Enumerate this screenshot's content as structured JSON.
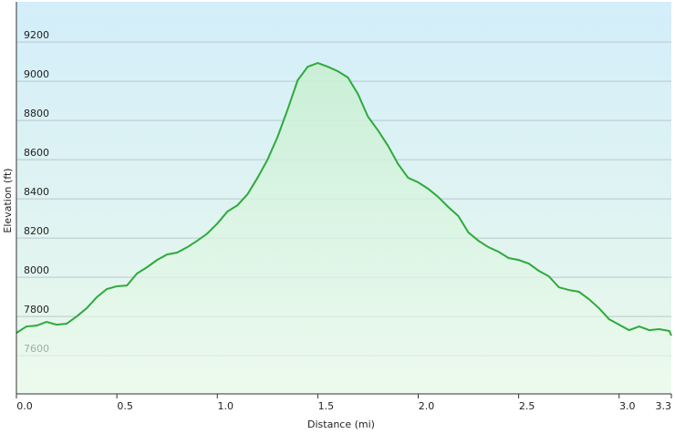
{
  "chart_data": {
    "type": "area",
    "x_label": "Distance  (mi)",
    "y_label": "Elevation (ft)",
    "x": [
      0,
      0.05,
      0.1,
      0.15,
      0.2,
      0.25,
      0.3,
      0.35,
      0.4,
      0.45,
      0.5,
      0.55,
      0.6,
      0.65,
      0.7,
      0.75,
      0.8,
      0.85,
      0.9,
      0.95,
      1.0,
      1.05,
      1.1,
      1.15,
      1.2,
      1.25,
      1.3,
      1.35,
      1.4,
      1.45,
      1.5,
      1.55,
      1.6,
      1.65,
      1.7,
      1.75,
      1.8,
      1.85,
      1.9,
      1.95,
      2.0,
      2.05,
      2.1,
      2.15,
      2.2,
      2.25,
      2.3,
      2.35,
      2.4,
      2.45,
      2.5,
      2.55,
      2.6,
      2.65,
      2.7,
      2.75,
      2.8,
      2.85,
      2.9,
      2.95,
      3.0,
      3.05,
      3.1,
      3.15,
      3.2,
      3.25,
      3.26
    ],
    "series": [
      {
        "name": "Elevation",
        "color": "#2eaa3c",
        "values": [
          7716,
          7749,
          7753,
          7772,
          7758,
          7763,
          7800,
          7842,
          7898,
          7940,
          7954,
          7958,
          8019,
          8051,
          8088,
          8116,
          8126,
          8153,
          8186,
          8223,
          8274,
          8335,
          8367,
          8423,
          8507,
          8600,
          8716,
          8856,
          9005,
          9074,
          9093,
          9074,
          9051,
          9019,
          8935,
          8819,
          8749,
          8670,
          8577,
          8507,
          8484,
          8451,
          8409,
          8358,
          8312,
          8228,
          8186,
          8153,
          8130,
          8098,
          8088,
          8070,
          8033,
          8005,
          7949,
          7935,
          7926,
          7888,
          7842,
          7786,
          7758,
          7730,
          7749,
          7730,
          7735,
          7726,
          7702
        ]
      }
    ],
    "xlim": [
      0,
      3.26
    ],
    "xticks": [
      {
        "value": 0,
        "label": "0.0"
      },
      0.5,
      {
        "value": 1,
        "label": "1.0"
      },
      1.5,
      {
        "value": 2,
        "label": "2.0"
      },
      2.5,
      {
        "value": 3,
        "label": "3.0"
      },
      {
        "value": 3.26,
        "label": "3.3"
      }
    ],
    "ylim": [
      7405,
      9405
    ],
    "yticks": [
      7600,
      7800,
      8000,
      8200,
      8400,
      8600,
      8800,
      9000,
      9200
    ],
    "grid": true
  }
}
